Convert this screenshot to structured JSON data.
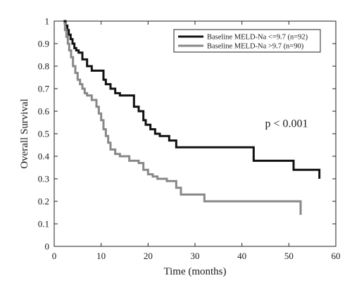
{
  "chart_data": {
    "type": "line",
    "subtype": "step",
    "title": "",
    "xlabel": "Time (months)",
    "ylabel": "Overall Survival",
    "xlim": [
      0,
      60
    ],
    "ylim": [
      0,
      1
    ],
    "xticks": [
      0,
      10,
      20,
      30,
      40,
      50,
      60
    ],
    "yticks": [
      0,
      0.1,
      0.2,
      0.3,
      0.4,
      0.5,
      0.6,
      0.7,
      0.8,
      0.9,
      1
    ],
    "grid": false,
    "legend_position": "top-right",
    "annotations": [
      {
        "text": "p < 0.001",
        "x": 49.5,
        "y": 0.53
      }
    ],
    "series": [
      {
        "name": "Baseline MELD-Na <=9.7 (n=92)",
        "color": "#111111",
        "x": [
          2,
          2.4,
          2.8,
          3.1,
          3.5,
          3.9,
          4.3,
          4.7,
          5.2,
          6,
          7,
          8,
          9.5,
          10.5,
          11,
          12,
          13,
          14,
          15.5,
          17,
          18,
          19,
          19.5,
          20.5,
          21.5,
          22.5,
          24.5,
          26,
          42,
          42.5,
          51,
          56.5
        ],
        "y": [
          1,
          0.98,
          0.96,
          0.94,
          0.92,
          0.9,
          0.88,
          0.87,
          0.86,
          0.83,
          0.8,
          0.78,
          0.78,
          0.74,
          0.72,
          0.7,
          0.68,
          0.67,
          0.67,
          0.62,
          0.6,
          0.56,
          0.54,
          0.52,
          0.5,
          0.49,
          0.47,
          0.44,
          0.44,
          0.38,
          0.34,
          0.3
        ]
      },
      {
        "name": "Baseline MELD-Na >9.7 (n=90)",
        "color": "#888888",
        "x": [
          2,
          2.3,
          2.6,
          2.9,
          3.2,
          3.6,
          4,
          4.5,
          5,
          5.5,
          6,
          6.5,
          7,
          8,
          9,
          9.5,
          10,
          10.5,
          11,
          11.5,
          12,
          13,
          14,
          16,
          18,
          19,
          20,
          21,
          22,
          24,
          26,
          27,
          32,
          52.5
        ],
        "y": [
          0.99,
          0.96,
          0.93,
          0.9,
          0.87,
          0.84,
          0.8,
          0.77,
          0.74,
          0.72,
          0.7,
          0.68,
          0.67,
          0.65,
          0.62,
          0.59,
          0.56,
          0.52,
          0.49,
          0.46,
          0.43,
          0.41,
          0.4,
          0.38,
          0.37,
          0.34,
          0.32,
          0.31,
          0.3,
          0.29,
          0.26,
          0.23,
          0.2,
          0.14
        ]
      }
    ]
  }
}
